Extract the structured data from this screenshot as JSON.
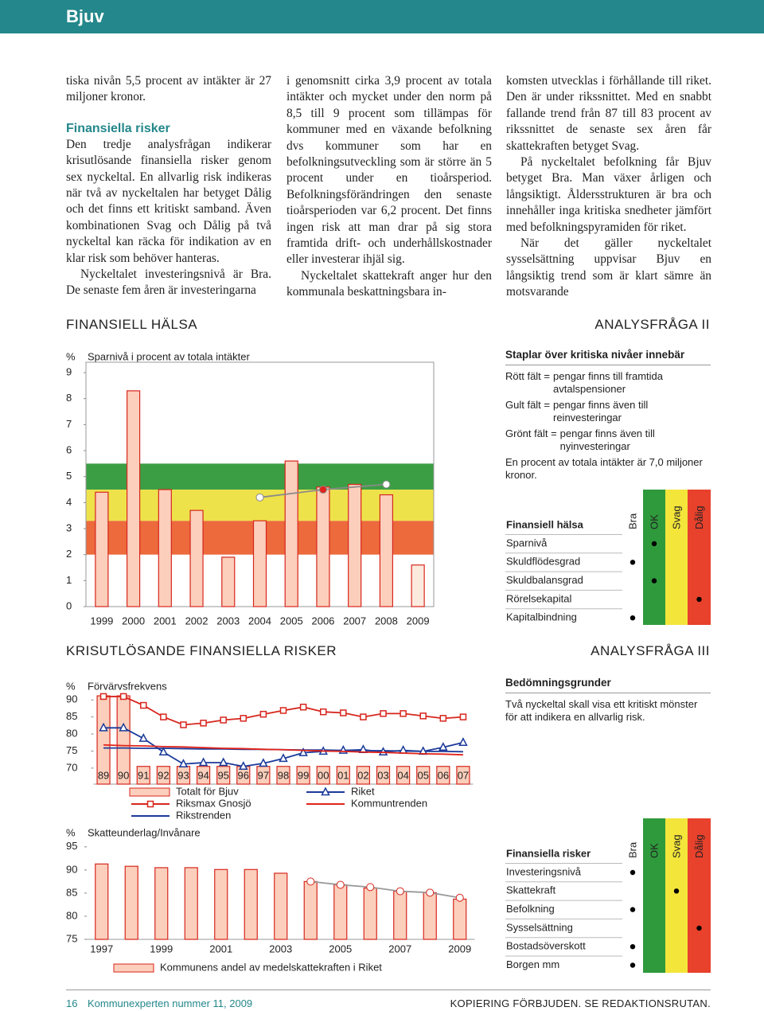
{
  "header": {
    "title": "Bjuv"
  },
  "columns": [
    [
      {
        "text": "tiska nivån 5,5 procent av intäkter är 27 miljoner kronor."
      },
      {
        "heading": "Finansiella risker"
      },
      {
        "text": "Den tredje analysfrågan indikerar krisutlösande finansiella risker genom sex nyckeltal. En allvarlig risk indikeras när två av nyckeltalen har betyget Dålig och det finns ett kritiskt samband. Även kombinationen Svag och Dålig på två nyckeltal kan räcka för indikation av en klar risk som behöver hanteras."
      },
      {
        "text": "Nyckeltalet investeringsnivå är Bra. De senaste fem åren är investeringarna"
      }
    ],
    [
      {
        "text": "i genomsnitt cirka 3,9 procent av totala intäkter och mycket under den norm på 8,5 till 9 procent som tillämpas för kommuner med en växande befolkning dvs kommuner som har en befolkningsutveckling som är större än 5 procent under en tioårsperiod. Befolkningsförändringen den senaste tioårsperioden var 6,2 procent. Det finns ingen risk att man drar på sig stora framtida drift- och underhållskostnader eller investerar ihjäl sig."
      },
      {
        "text": "Nyckeltalet skattekraft anger hur den kommunala beskattningsbara in-"
      }
    ],
    [
      {
        "text": "komsten utvecklas i förhållande till riket. Den är under rikssnittet. Med en snabbt fallande trend från 87 till 83 procent av rikssnittet de senaste sex åren får skattekraften betyget Svag."
      },
      {
        "text": "På nyckeltalet befolkning får Bjuv betyget Bra. Man växer årligen och långsiktigt. Åldersstrukturen är bra och innehåller inga kritiska snedheter jämfört med befolkningspyramiden för riket."
      },
      {
        "text": "När det gäller nyckeltalet sysselsättning uppvisar Bjuv en långsiktig trend som är klart sämre än motsvarande"
      }
    ]
  ],
  "sections": [
    {
      "title": "FINANSIELL HÄLSA",
      "label": "ANALYSFRÅGA II"
    },
    {
      "title": "KRISUTLÖSANDE FINANSIELLA RISKER",
      "label": "ANALYSFRÅGA III"
    }
  ],
  "legend_box": {
    "title": "Staplar över kritiska nivåer innebär",
    "items": [
      {
        "term": "Rött fält =",
        "text": "pengar finns till framtida avtalspensioner"
      },
      {
        "term": "Gult fält =",
        "text": "pengar finns även till reinvesteringar"
      },
      {
        "term": "Grönt fält =",
        "text": "pengar finns även till nyinvesteringar"
      }
    ],
    "note": "En procent av totala intäkter är 7,0 miljoner kronor."
  },
  "criteria": {
    "title": "Bedömningsgrunder",
    "text": "Två nyckeltal skall visa ett kritiskt mönster för att indikera en allvarlig risk."
  },
  "tables": [
    {
      "title": "Finansiell hälsa",
      "grades": [
        "Bra",
        "OK",
        "Svag",
        "Dålig"
      ],
      "grade_colors": [
        "#ffffff",
        "#2f9a3c",
        "#f3e53a",
        "#e8412c"
      ],
      "rows": [
        {
          "label": "Sparnivå",
          "grade": "OK"
        },
        {
          "label": "Skuldflödesgrad",
          "grade": "Bra"
        },
        {
          "label": "Skuldbalansgrad",
          "grade": "OK"
        },
        {
          "label": "Rörelsekapital",
          "grade": "Dålig"
        },
        {
          "label": "Kapitalbindning",
          "grade": "Bra"
        }
      ]
    },
    {
      "title": "Finansiella risker",
      "grades": [
        "Bra",
        "OK",
        "Svag",
        "Dålig"
      ],
      "grade_colors": [
        "#ffffff",
        "#2f9a3c",
        "#f3e53a",
        "#e8412c"
      ],
      "rows": [
        {
          "label": "Investeringsnivå",
          "grade": "Bra"
        },
        {
          "label": "Skattekraft",
          "grade": "Svag"
        },
        {
          "label": "Befolkning",
          "grade": "Bra"
        },
        {
          "label": "Sysselsättning",
          "grade": "Dålig"
        },
        {
          "label": "Bostadsöverskott",
          "grade": "Bra"
        },
        {
          "label": "Borgen mm",
          "grade": "Bra"
        }
      ]
    }
  ],
  "footer": {
    "page": "16",
    "publication": "Kommunexperten nummer 11, 2009",
    "notice": "KOPIERING FÖRBJUDEN. SE REDAKTIONSRUTAN."
  },
  "chart_data": [
    {
      "type": "bar",
      "ylabel": "%",
      "title": "Sparnivå i procent av totala intäkter",
      "categories": [
        "1999",
        "2000",
        "2001",
        "2002",
        "2003",
        "2004",
        "2005",
        "2006",
        "2007",
        "2008",
        "2009"
      ],
      "ylim": [
        0,
        9.4
      ],
      "yticks": [
        0,
        1,
        2,
        3,
        4,
        5,
        6,
        7,
        8,
        9
      ],
      "bands": [
        {
          "from": 2.0,
          "to": 3.3,
          "color": "#ec6a3c"
        },
        {
          "from": 3.3,
          "to": 4.5,
          "color": "#eee24a"
        },
        {
          "from": 4.5,
          "to": 5.5,
          "color": "#3c9e44"
        }
      ],
      "series": [
        {
          "type": "bar",
          "values": [
            4.4,
            8.3,
            4.5,
            3.7,
            1.9,
            3.3,
            5.6,
            4.6,
            4.7,
            4.3,
            1.6
          ],
          "stroke": "#d7261e",
          "colors": [
            "#fbcfbb",
            "#fbcfbb",
            "#fbcfbb",
            "#fbcfbb",
            "#fbcfbb",
            "#fbcfbb",
            "#fbcfbb",
            "#fbcfbb",
            "#fbcfbb",
            "#fbcfbb",
            "#fdeadf"
          ]
        },
        {
          "type": "line",
          "x": [
            "2004",
            "2006",
            "2008"
          ],
          "values": [
            4.2,
            4.5,
            4.7
          ],
          "color": "#8a8a8a",
          "marker": "circle",
          "marker_colors": [
            "#ffffff",
            "#e2231a",
            "#ffffff"
          ]
        }
      ]
    },
    {
      "type": "combo",
      "ylabel": "%",
      "title": "Förvärvsfrekvens",
      "categories": [
        "89",
        "90",
        "91",
        "92",
        "93",
        "94",
        "95",
        "96",
        "97",
        "98",
        "99",
        "00",
        "01",
        "02",
        "03",
        "04",
        "05",
        "06",
        "07"
      ],
      "ylim": [
        65.3,
        91.8
      ],
      "yticks": [
        70,
        75,
        80,
        85,
        90
      ],
      "series": [
        {
          "type": "bar",
          "name": "Totalt för Bjuv",
          "color": "#fbcfbb",
          "stroke": "#d7261e",
          "values": [
            91.2,
            91.2,
            70.5,
            70.5,
            70.5,
            70.5,
            70.5,
            70.5,
            70.5,
            70.5,
            70.5,
            70.5,
            70.5,
            70.5,
            70.5,
            70.5,
            70.5,
            70.5,
            70.5
          ]
        },
        {
          "type": "line",
          "name": "Riksmax Gnosjö",
          "color": "#d7261e",
          "marker": "square",
          "values": [
            91,
            91,
            88.4,
            85,
            82.7,
            83.2,
            84.1,
            84.6,
            85.8,
            86.9,
            87.9,
            86.5,
            86.2,
            85,
            86,
            86,
            85.3,
            84.6,
            85
          ]
        },
        {
          "type": "line",
          "name": "Rikstrenden",
          "color": "#1b3a9a",
          "values": [
            75.9,
            75.9,
            75.8,
            75.8,
            75.7,
            75.6,
            75.6,
            75.5,
            75.5,
            75.4,
            75.3,
            75.3,
            75.2,
            75.1,
            75.1,
            75.0,
            74.9,
            74.9,
            74.8
          ]
        },
        {
          "type": "line",
          "name": "Riket",
          "color": "#1b3a9a",
          "marker": "triangle",
          "values": [
            81.8,
            81.8,
            78.7,
            74.7,
            71.2,
            71.6,
            71.6,
            70.5,
            71.4,
            72.8,
            74.5,
            74.9,
            75.2,
            75.4,
            74.7,
            75.2,
            74.9,
            76.1,
            77.5
          ]
        },
        {
          "type": "line",
          "name": "Kommuntrenden",
          "color": "#e2231a",
          "values": [
            76.8,
            76.6,
            76.5,
            76.3,
            76.2,
            76.0,
            75.8,
            75.7,
            75.5,
            75.4,
            75.2,
            75.0,
            74.9,
            74.7,
            74.6,
            74.4,
            74.2,
            74.1,
            73.9
          ]
        }
      ]
    },
    {
      "type": "bar",
      "ylabel": "%",
      "title": "Skatteunderlag/Invånare",
      "categories": [
        "1997",
        null,
        "1999",
        null,
        "2001",
        null,
        "2003",
        null,
        "2005",
        null,
        "2007",
        null,
        "2009"
      ],
      "ylim": [
        75,
        96
      ],
      "yticks": [
        75,
        80,
        85,
        90,
        95
      ],
      "series": [
        {
          "type": "bar",
          "name": "Kommunens andel av medelskattekraften i Riket",
          "color": "#fbcfbb",
          "stroke": "#d7261e",
          "values": [
            91.3,
            90.8,
            90.5,
            90.5,
            90.1,
            90.1,
            89.3,
            87.5,
            86.8,
            86.1,
            85.4,
            85.1,
            83.7
          ]
        },
        {
          "type": "line",
          "color": "#9a9a9a",
          "marker": "circle",
          "marker_stroke": "#d7261e",
          "values": [
            null,
            null,
            null,
            null,
            null,
            null,
            null,
            87.5,
            86.8,
            86.3,
            85.4,
            85.1,
            84.0
          ]
        }
      ]
    }
  ]
}
